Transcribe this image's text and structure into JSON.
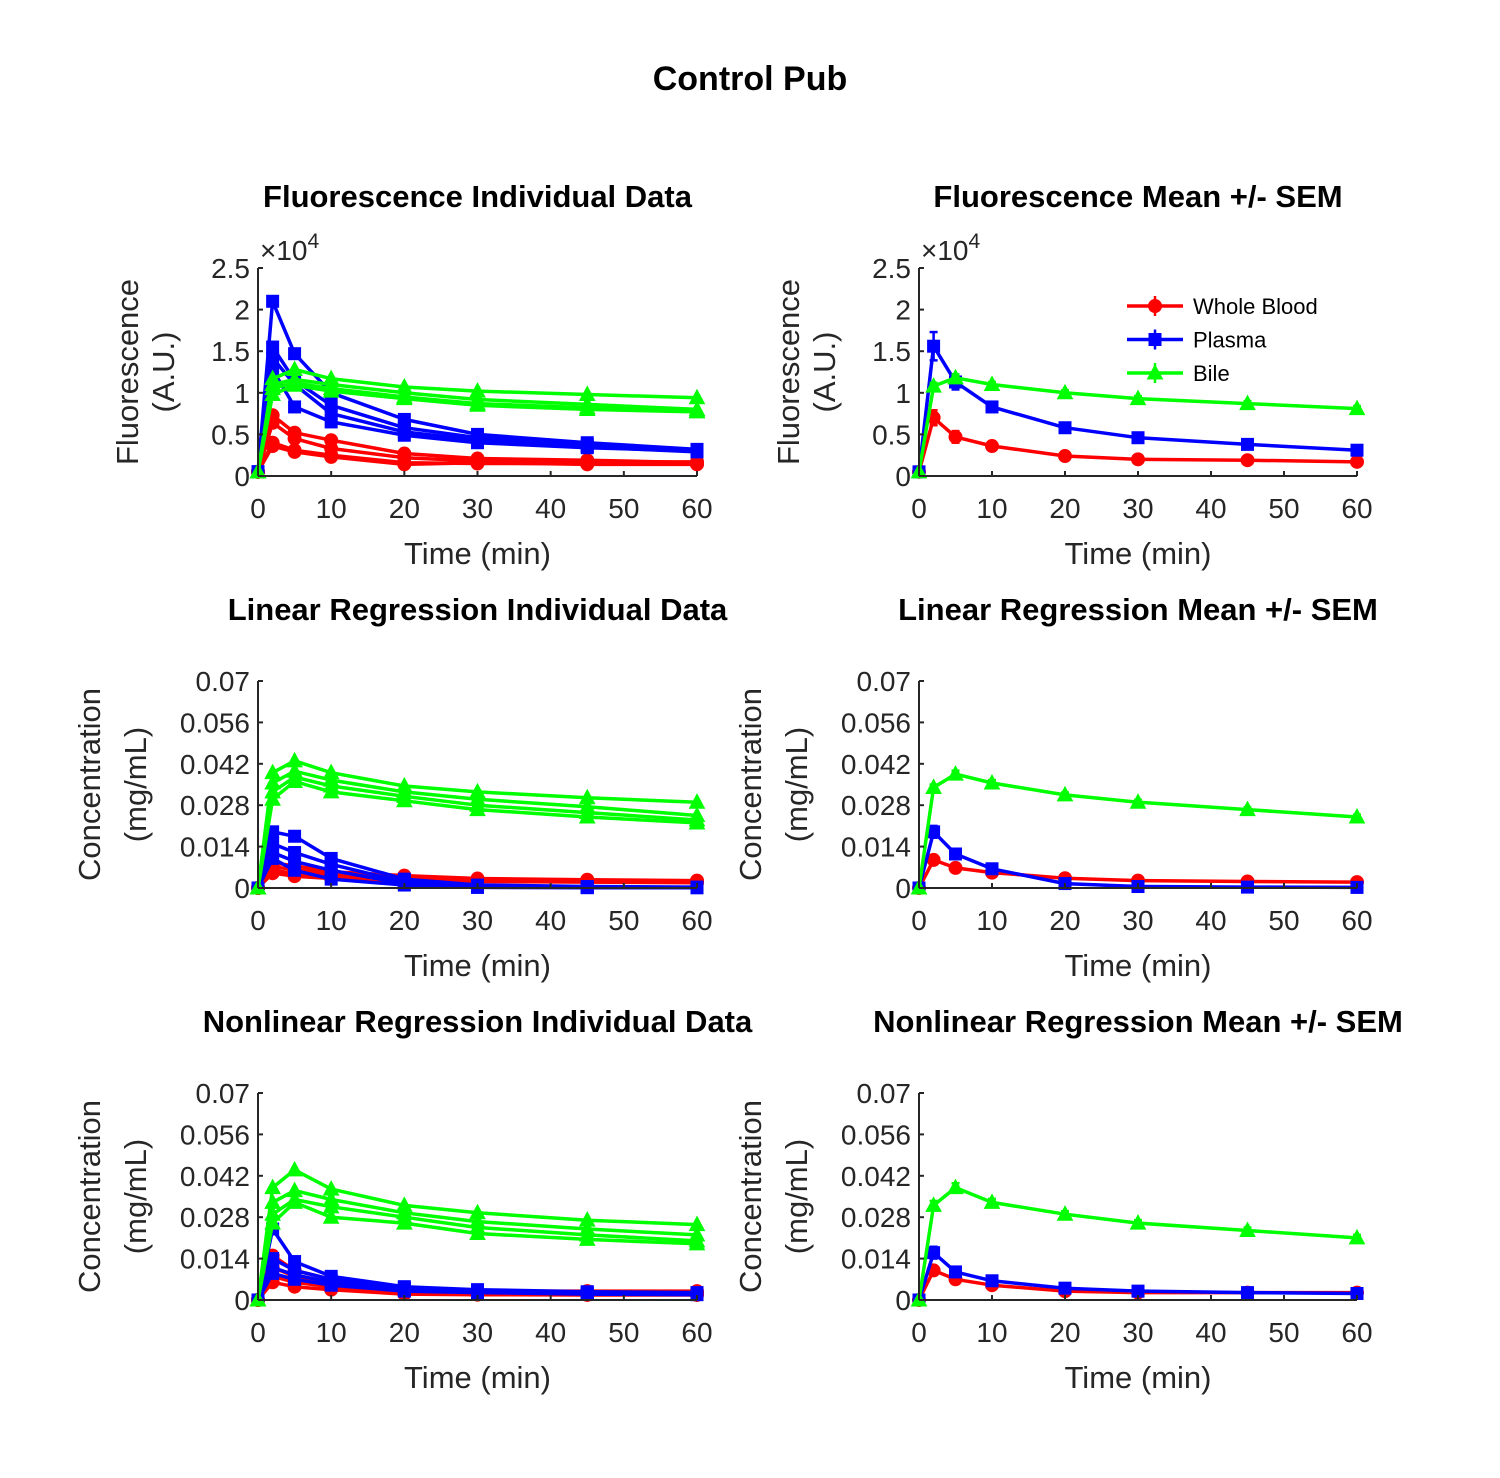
{
  "figure": {
    "title": "Control Pub"
  },
  "chart_data": [
    {
      "id": "fluor-individual",
      "type": "line",
      "title": "Fluorescence Individual Data",
      "xlabel": "Time (min)",
      "ylabel_lines": [
        "Fluorescence",
        "(A.U.)"
      ],
      "xlim": [
        0,
        60
      ],
      "ylim": [
        0,
        25000
      ],
      "xticks": [
        0,
        10,
        20,
        30,
        40,
        50,
        60
      ],
      "yticks": [
        0,
        5000,
        10000,
        15000,
        20000,
        25000
      ],
      "ytick_labels": [
        "0",
        "0.5",
        "1",
        "1.5",
        "2",
        "2.5"
      ],
      "y_exponent": {
        "base": "×10",
        "power": "4"
      },
      "x": [
        0,
        2,
        5,
        10,
        20,
        30,
        45,
        60
      ],
      "series": [
        {
          "group": "Whole Blood",
          "color": "#ff0000",
          "marker": "circle",
          "values": [
            500,
            7300,
            5200,
            4300,
            2700,
            2100,
            1900,
            1600
          ]
        },
        {
          "group": "Whole Blood",
          "color": "#ff0000",
          "marker": "circle",
          "values": [
            500,
            6400,
            4500,
            3300,
            2200,
            1800,
            1700,
            1700
          ]
        },
        {
          "group": "Whole Blood",
          "color": "#ff0000",
          "marker": "circle",
          "values": [
            500,
            4000,
            3100,
            2500,
            1600,
            1500,
            1500,
            1500
          ]
        },
        {
          "group": "Whole Blood",
          "color": "#ff0000",
          "marker": "circle",
          "values": [
            500,
            3600,
            2900,
            2300,
            1400,
            1600,
            1400,
            1400
          ]
        },
        {
          "group": "Plasma",
          "color": "#0000ff",
          "marker": "square",
          "values": [
            500,
            21000,
            14700,
            10000,
            6800,
            5000,
            4000,
            3200
          ]
        },
        {
          "group": "Plasma",
          "color": "#0000ff",
          "marker": "square",
          "values": [
            500,
            15500,
            11500,
            8500,
            5800,
            4600,
            3700,
            3000
          ]
        },
        {
          "group": "Plasma",
          "color": "#0000ff",
          "marker": "square",
          "values": [
            500,
            14200,
            11000,
            7500,
            5300,
            4300,
            3500,
            2900
          ]
        },
        {
          "group": "Plasma",
          "color": "#0000ff",
          "marker": "square",
          "values": [
            500,
            12800,
            8300,
            6500,
            4900,
            4000,
            3400,
            3000
          ]
        },
        {
          "group": "Bile",
          "color": "#00ff00",
          "marker": "triangle",
          "values": [
            500,
            11700,
            12800,
            11700,
            10700,
            10200,
            9800,
            9400
          ]
        },
        {
          "group": "Bile",
          "color": "#00ff00",
          "marker": "triangle",
          "values": [
            500,
            11000,
            11600,
            11000,
            10000,
            9200,
            8600,
            8000
          ]
        },
        {
          "group": "Bile",
          "color": "#00ff00",
          "marker": "triangle",
          "values": [
            500,
            10500,
            11200,
            10500,
            9500,
            8700,
            8200,
            7800
          ]
        },
        {
          "group": "Bile",
          "color": "#00ff00",
          "marker": "triangle",
          "values": [
            500,
            9800,
            10900,
            10200,
            9300,
            8500,
            8000,
            7700
          ]
        }
      ]
    },
    {
      "id": "fluor-mean",
      "type": "line",
      "title": "Fluorescence Mean +/- SEM",
      "xlabel": "Time (min)",
      "ylabel_lines": [
        "Fluorescence",
        "(A.U.)"
      ],
      "xlim": [
        0,
        60
      ],
      "ylim": [
        0,
        25000
      ],
      "xticks": [
        0,
        10,
        20,
        30,
        40,
        50,
        60
      ],
      "yticks": [
        0,
        5000,
        10000,
        15000,
        20000,
        25000
      ],
      "ytick_labels": [
        "0",
        "0.5",
        "1",
        "1.5",
        "2",
        "2.5"
      ],
      "y_exponent": {
        "base": "×10",
        "power": "4"
      },
      "legend": {
        "placement": "top-right",
        "entries": [
          "Whole Blood",
          "Plasma",
          "Bile"
        ]
      },
      "x": [
        0,
        2,
        5,
        10,
        20,
        30,
        45,
        60
      ],
      "series": [
        {
          "name": "Whole Blood",
          "color": "#ff0000",
          "marker": "circle",
          "values": [
            500,
            7000,
            4700,
            3600,
            2400,
            2000,
            1900,
            1700
          ],
          "sem": [
            0,
            900,
            700,
            300,
            200,
            100,
            100,
            100
          ]
        },
        {
          "name": "Plasma",
          "color": "#0000ff",
          "marker": "square",
          "values": [
            500,
            15600,
            11300,
            8300,
            5800,
            4600,
            3800,
            3100
          ],
          "sem": [
            0,
            1700,
            900,
            600,
            300,
            200,
            100,
            100
          ]
        },
        {
          "name": "Bile",
          "color": "#00ff00",
          "marker": "triangle",
          "values": [
            500,
            10800,
            11800,
            11000,
            10000,
            9300,
            8700,
            8100
          ],
          "sem": [
            0,
            400,
            400,
            300,
            300,
            300,
            300,
            300
          ]
        }
      ]
    },
    {
      "id": "linreg-individual",
      "type": "line",
      "title": "Linear Regression Individual Data",
      "xlabel": "Time (min)",
      "ylabel_lines": [
        "Concentration",
        "(mg/mL)"
      ],
      "xlim": [
        0,
        60
      ],
      "ylim": [
        0,
        0.07
      ],
      "xticks": [
        0,
        10,
        20,
        30,
        40,
        50,
        60
      ],
      "yticks": [
        0,
        0.014,
        0.028,
        0.042,
        0.056,
        0.07
      ],
      "ytick_labels": [
        "0",
        "0.014",
        "0.028",
        "0.042",
        "0.056",
        "0.07"
      ],
      "x": [
        0,
        2,
        5,
        10,
        20,
        30,
        45,
        60
      ],
      "series": [
        {
          "group": "Whole Blood",
          "color": "#ff0000",
          "marker": "circle",
          "values": [
            0,
            0.0085,
            0.0075,
            0.0055,
            0.0042,
            0.0032,
            0.0028,
            0.0025
          ]
        },
        {
          "group": "Whole Blood",
          "color": "#ff0000",
          "marker": "circle",
          "values": [
            0,
            0.0072,
            0.0062,
            0.0048,
            0.0035,
            0.0028,
            0.0025,
            0.0022
          ]
        },
        {
          "group": "Whole Blood",
          "color": "#ff0000",
          "marker": "circle",
          "values": [
            0,
            0.006,
            0.005,
            0.004,
            0.003,
            0.0026,
            0.0023,
            0.002
          ]
        },
        {
          "group": "Whole Blood",
          "color": "#ff0000",
          "marker": "circle",
          "values": [
            0,
            0.005,
            0.004,
            0.0032,
            0.0025,
            0.0022,
            0.002,
            0.0018
          ]
        },
        {
          "group": "Plasma",
          "color": "#0000ff",
          "marker": "square",
          "values": [
            0,
            0.019,
            0.0175,
            0.01,
            0.003,
            0.001,
            0.0005,
            0.0003
          ]
        },
        {
          "group": "Plasma",
          "color": "#0000ff",
          "marker": "square",
          "values": [
            0,
            0.015,
            0.012,
            0.008,
            0.002,
            0.0005,
            0.0003,
            0.0002
          ]
        },
        {
          "group": "Plasma",
          "color": "#0000ff",
          "marker": "square",
          "values": [
            0,
            0.012,
            0.009,
            0.006,
            0.0015,
            0.0003,
            0.0002,
            0.0001
          ]
        },
        {
          "group": "Plasma",
          "color": "#0000ff",
          "marker": "square",
          "values": [
            0,
            0.01,
            0.006,
            0.003,
            0.001,
            0.0002,
            0.0001,
            0.0001
          ]
        },
        {
          "group": "Bile",
          "color": "#00ff00",
          "marker": "triangle",
          "values": [
            0,
            0.039,
            0.043,
            0.039,
            0.0345,
            0.0325,
            0.0305,
            0.029
          ]
        },
        {
          "group": "Bile",
          "color": "#00ff00",
          "marker": "triangle",
          "values": [
            0,
            0.0355,
            0.0395,
            0.0365,
            0.0325,
            0.03,
            0.0275,
            0.0245
          ]
        },
        {
          "group": "Bile",
          "color": "#00ff00",
          "marker": "triangle",
          "values": [
            0,
            0.0325,
            0.0375,
            0.0345,
            0.031,
            0.028,
            0.0255,
            0.023
          ]
        },
        {
          "group": "Bile",
          "color": "#00ff00",
          "marker": "triangle",
          "values": [
            0,
            0.03,
            0.036,
            0.0325,
            0.0295,
            0.0265,
            0.024,
            0.022
          ]
        }
      ]
    },
    {
      "id": "linreg-mean",
      "type": "line",
      "title": "Linear Regression Mean +/- SEM",
      "xlabel": "Time (min)",
      "ylabel_lines": [
        "Concentration",
        "(mg/mL)"
      ],
      "xlim": [
        0,
        60
      ],
      "ylim": [
        0,
        0.07
      ],
      "xticks": [
        0,
        10,
        20,
        30,
        40,
        50,
        60
      ],
      "yticks": [
        0,
        0.014,
        0.028,
        0.042,
        0.056,
        0.07
      ],
      "ytick_labels": [
        "0",
        "0.014",
        "0.028",
        "0.042",
        "0.056",
        "0.07"
      ],
      "x": [
        0,
        2,
        5,
        10,
        20,
        30,
        45,
        60
      ],
      "series": [
        {
          "name": "Whole Blood",
          "color": "#ff0000",
          "marker": "circle",
          "values": [
            0,
            0.0095,
            0.0068,
            0.0052,
            0.0033,
            0.0025,
            0.0022,
            0.002
          ],
          "sem": [
            0,
            0.001,
            0.0008,
            0.0005,
            0.0003,
            0.0002,
            0.0002,
            0.0002
          ]
        },
        {
          "name": "Plasma",
          "color": "#0000ff",
          "marker": "square",
          "values": [
            0,
            0.019,
            0.0115,
            0.0065,
            0.0015,
            0.0005,
            0.0003,
            0.0002
          ],
          "sem": [
            0,
            0.002,
            0.0012,
            0.0008,
            0.0003,
            0.0001,
            0.0001,
            0.0001
          ]
        },
        {
          "name": "Bile",
          "color": "#00ff00",
          "marker": "triangle",
          "values": [
            0,
            0.034,
            0.0385,
            0.0355,
            0.0315,
            0.029,
            0.0265,
            0.024
          ],
          "sem": [
            0,
            0.001,
            0.0012,
            0.001,
            0.0008,
            0.0008,
            0.0008,
            0.0008
          ]
        }
      ]
    },
    {
      "id": "nonlinreg-individual",
      "type": "line",
      "title": "Nonlinear Regression Individual Data",
      "xlabel": "Time (min)",
      "ylabel_lines": [
        "Concentration",
        "(mg/mL)"
      ],
      "xlim": [
        0,
        60
      ],
      "ylim": [
        0,
        0.07
      ],
      "xticks": [
        0,
        10,
        20,
        30,
        40,
        50,
        60
      ],
      "yticks": [
        0,
        0.014,
        0.028,
        0.042,
        0.056,
        0.07
      ],
      "ytick_labels": [
        "0",
        "0.014",
        "0.028",
        "0.042",
        "0.056",
        "0.07"
      ],
      "x": [
        0,
        2,
        5,
        10,
        20,
        30,
        45,
        60
      ],
      "series": [
        {
          "group": "Whole Blood",
          "color": "#ff0000",
          "marker": "circle",
          "values": [
            0,
            0.015,
            0.01,
            0.007,
            0.004,
            0.003,
            0.003,
            0.003
          ]
        },
        {
          "group": "Whole Blood",
          "color": "#ff0000",
          "marker": "circle",
          "values": [
            0,
            0.011,
            0.008,
            0.0055,
            0.003,
            0.0025,
            0.0022,
            0.0022
          ]
        },
        {
          "group": "Whole Blood",
          "color": "#ff0000",
          "marker": "circle",
          "values": [
            0,
            0.008,
            0.006,
            0.0045,
            0.0025,
            0.002,
            0.002,
            0.002
          ]
        },
        {
          "group": "Whole Blood",
          "color": "#ff0000",
          "marker": "circle",
          "values": [
            0,
            0.006,
            0.0045,
            0.0035,
            0.002,
            0.0018,
            0.0017,
            0.0017
          ]
        },
        {
          "group": "Plasma",
          "color": "#0000ff",
          "marker": "square",
          "values": [
            0,
            0.024,
            0.013,
            0.008,
            0.0045,
            0.0035,
            0.0028,
            0.0025
          ]
        },
        {
          "group": "Plasma",
          "color": "#0000ff",
          "marker": "square",
          "values": [
            0,
            0.014,
            0.01,
            0.007,
            0.004,
            0.003,
            0.0025,
            0.0022
          ]
        },
        {
          "group": "Plasma",
          "color": "#0000ff",
          "marker": "square",
          "values": [
            0,
            0.011,
            0.0085,
            0.006,
            0.0035,
            0.0028,
            0.0022,
            0.002
          ]
        },
        {
          "group": "Plasma",
          "color": "#0000ff",
          "marker": "square",
          "values": [
            0,
            0.009,
            0.007,
            0.005,
            0.003,
            0.0025,
            0.002,
            0.0018
          ]
        },
        {
          "group": "Bile",
          "color": "#00ff00",
          "marker": "triangle",
          "values": [
            0,
            0.038,
            0.044,
            0.0375,
            0.032,
            0.0295,
            0.027,
            0.0255
          ]
        },
        {
          "group": "Bile",
          "color": "#00ff00",
          "marker": "triangle",
          "values": [
            0,
            0.033,
            0.037,
            0.034,
            0.0295,
            0.0265,
            0.024,
            0.022
          ]
        },
        {
          "group": "Bile",
          "color": "#00ff00",
          "marker": "triangle",
          "values": [
            0,
            0.029,
            0.034,
            0.0315,
            0.028,
            0.0245,
            0.022,
            0.02
          ]
        },
        {
          "group": "Bile",
          "color": "#00ff00",
          "marker": "triangle",
          "values": [
            0,
            0.026,
            0.033,
            0.028,
            0.026,
            0.0225,
            0.0205,
            0.019
          ]
        }
      ]
    },
    {
      "id": "nonlinreg-mean",
      "type": "line",
      "title": "Nonlinear Regression Mean +/- SEM",
      "xlabel": "Time (min)",
      "ylabel_lines": [
        "Concentration",
        "(mg/mL)"
      ],
      "xlim": [
        0,
        60
      ],
      "ylim": [
        0,
        0.07
      ],
      "xticks": [
        0,
        10,
        20,
        30,
        40,
        50,
        60
      ],
      "yticks": [
        0,
        0.014,
        0.028,
        0.042,
        0.056,
        0.07
      ],
      "ytick_labels": [
        "0",
        "0.014",
        "0.028",
        "0.042",
        "0.056",
        "0.07"
      ],
      "x": [
        0,
        2,
        5,
        10,
        20,
        30,
        45,
        60
      ],
      "series": [
        {
          "name": "Whole Blood",
          "color": "#ff0000",
          "marker": "circle",
          "values": [
            0,
            0.01,
            0.007,
            0.005,
            0.003,
            0.0025,
            0.0025,
            0.0025
          ],
          "sem": [
            0,
            0.0015,
            0.001,
            0.0006,
            0.0003,
            0.0002,
            0.0002,
            0.0002
          ]
        },
        {
          "name": "Plasma",
          "color": "#0000ff",
          "marker": "square",
          "values": [
            0,
            0.016,
            0.0095,
            0.0065,
            0.004,
            0.003,
            0.0025,
            0.0022
          ],
          "sem": [
            0,
            0.002,
            0.001,
            0.0006,
            0.0003,
            0.0002,
            0.0002,
            0.0002
          ]
        },
        {
          "name": "Bile",
          "color": "#00ff00",
          "marker": "triangle",
          "values": [
            0,
            0.032,
            0.038,
            0.033,
            0.029,
            0.026,
            0.0235,
            0.021
          ],
          "sem": [
            0,
            0.0015,
            0.0015,
            0.0012,
            0.001,
            0.001,
            0.001,
            0.001
          ]
        }
      ]
    }
  ]
}
